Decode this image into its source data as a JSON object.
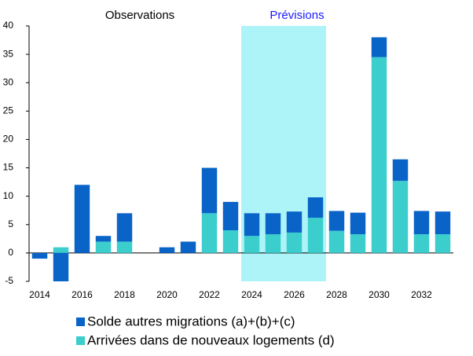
{
  "chart_data": {
    "type": "bar",
    "stacked": true,
    "annotations": [
      {
        "text": "Observations",
        "color": "#000000"
      },
      {
        "text": "Prévisions",
        "color": "#1a1aff"
      }
    ],
    "highlight": {
      "start": 10,
      "end": 13,
      "color": "#adf4f8"
    },
    "categories": [
      "2014",
      null,
      "2016",
      null,
      "2018",
      null,
      "2020",
      null,
      "2022",
      null,
      "2024",
      null,
      "2026",
      null,
      "2028",
      null,
      "2030",
      null,
      "2032",
      null
    ],
    "series": [
      {
        "name": "Solde autres migrations (a)+(b)+(c)",
        "color": "#0a64c8",
        "values": [
          -1,
          -5,
          12,
          1,
          5,
          0,
          1,
          2,
          8,
          5,
          4,
          3.7,
          3.7,
          3.6,
          3.5,
          3.8,
          3.5,
          3.8,
          4.1,
          4
        ]
      },
      {
        "name": "Arrivées dans de nouveaux logements (d)",
        "color": "#3ccdcd",
        "values": [
          0,
          1,
          0,
          2,
          2,
          0,
          0,
          0,
          7,
          4,
          3,
          3.3,
          3.6,
          6.2,
          3.9,
          3.3,
          34.5,
          12.7,
          3.3,
          3.3
        ]
      }
    ],
    "ylim": [
      -5,
      40
    ],
    "yticks": [
      -5,
      0,
      5,
      10,
      15,
      20,
      25,
      30,
      35,
      40
    ]
  }
}
